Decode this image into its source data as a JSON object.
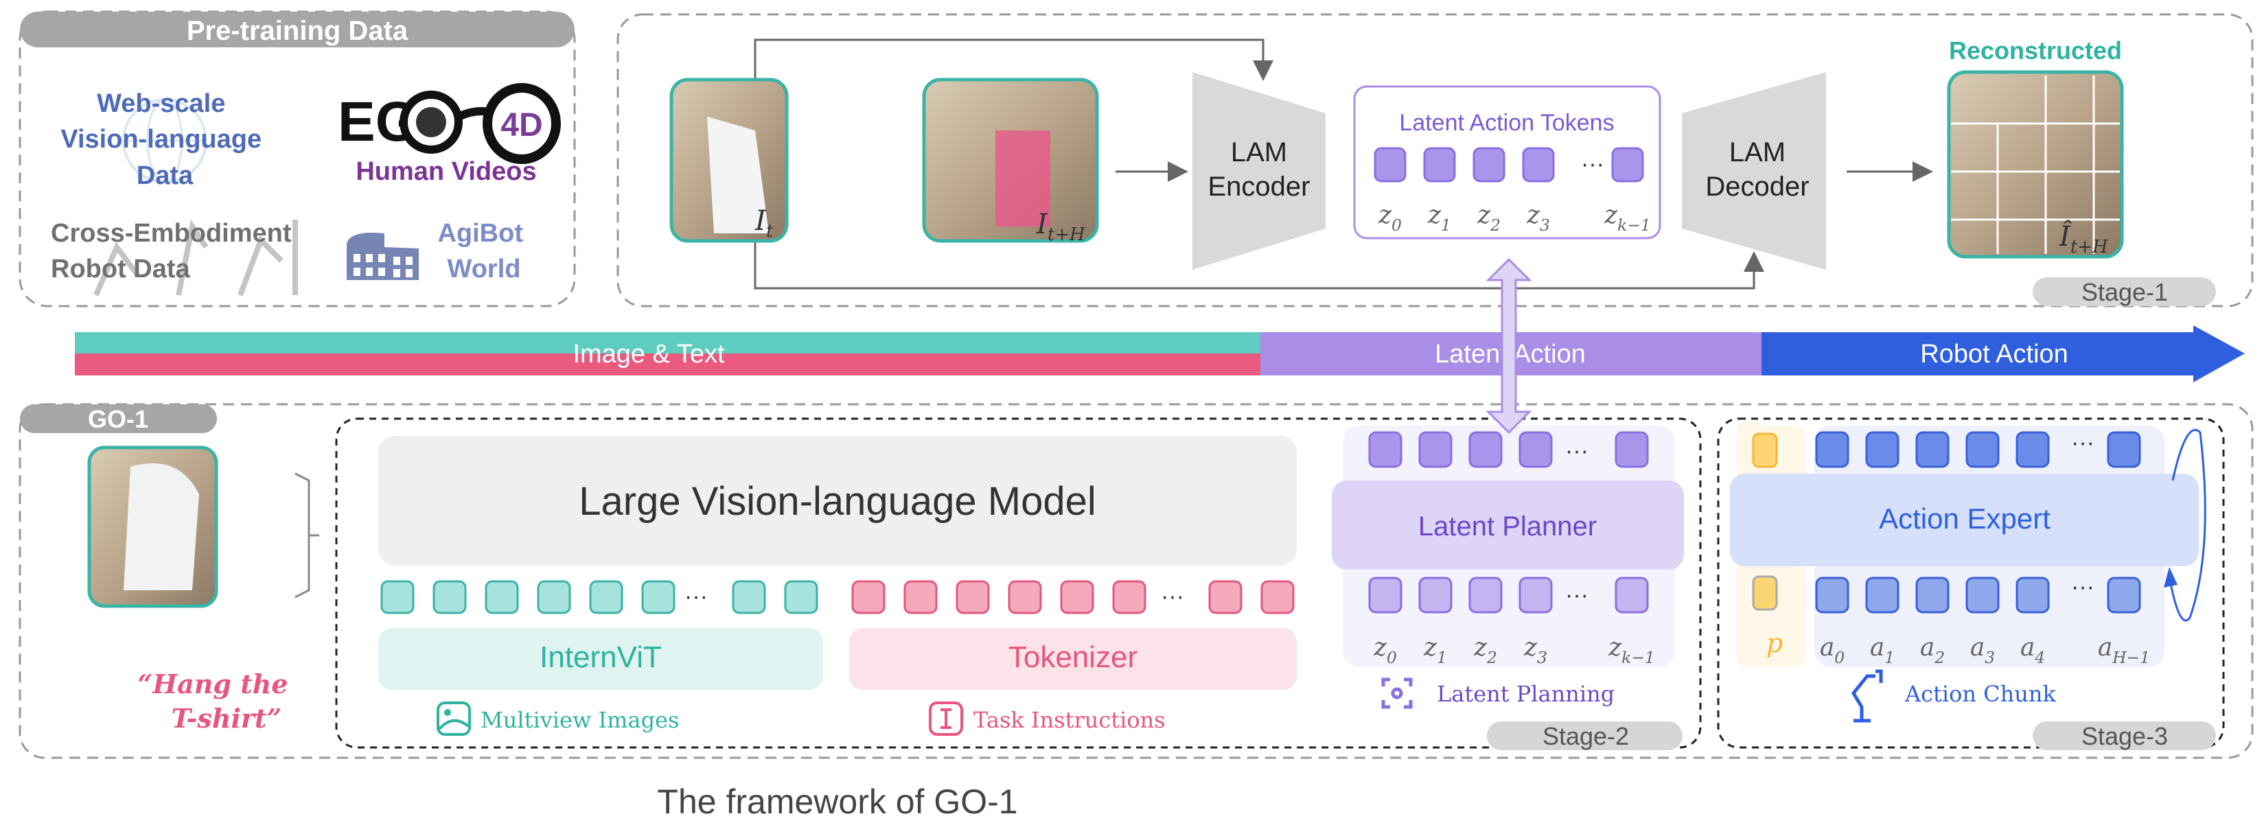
{
  "pretraining": {
    "title": "Pre-training Data",
    "web": [
      "Web-scale",
      "Vision-language",
      "Data"
    ],
    "ego_logo": {
      "ego": "EG",
      "four_d": "4D"
    },
    "human_videos": "Human Videos",
    "cross": [
      "Cross-Embodiment",
      "Robot Data"
    ],
    "agibot": [
      "AgiBot",
      "World"
    ]
  },
  "stage1": {
    "image_t": {
      "base": "I",
      "sub": "t"
    },
    "image_tH": {
      "base": "I",
      "sub": "t+H"
    },
    "encoder": [
      "LAM",
      "Encoder"
    ],
    "tokens_title": "Latent Action Tokens",
    "token_labels": [
      {
        "b": "z",
        "s": "0"
      },
      {
        "b": "z",
        "s": "1"
      },
      {
        "b": "z",
        "s": "2"
      },
      {
        "b": "z",
        "s": "3"
      },
      {
        "b": "z",
        "s": "k−1"
      }
    ],
    "ellipsis": "···",
    "decoder": [
      "LAM",
      "Decoder"
    ],
    "reconstructed": "Reconstructed",
    "image_hat": {
      "base": "Î",
      "sub": "t+H"
    },
    "stage_label": "Stage-1"
  },
  "progress": {
    "segments": [
      "Image & Text",
      "Latent Action",
      "Robot Action"
    ],
    "colors": {
      "teal": "#5ecdc0",
      "pink": "#ea5a7e",
      "purple": "#a98de6",
      "blue": "#2f5fde"
    }
  },
  "go1": {
    "title": "GO-1",
    "instruction": [
      "“Hang the",
      "T-shirt”"
    ],
    "vlm": "Large Vision-language Model",
    "internvit": "InternViT",
    "tokenizer": "Tokenizer",
    "multiview": "Multiview Images",
    "task": "Task Instructions",
    "ellipsis": "···",
    "latent_planner": "Latent Planner",
    "latent_planning": "Latent Planning",
    "planner_labels": [
      {
        "b": "z",
        "s": "0"
      },
      {
        "b": "z",
        "s": "1"
      },
      {
        "b": "z",
        "s": "2"
      },
      {
        "b": "z",
        "s": "3"
      },
      {
        "b": "z",
        "s": "k−1"
      }
    ],
    "stage2": "Stage-2",
    "action_expert": "Action Expert",
    "proprio": "p",
    "action_labels": [
      {
        "b": "a",
        "s": "0"
      },
      {
        "b": "a",
        "s": "1"
      },
      {
        "b": "a",
        "s": "2"
      },
      {
        "b": "a",
        "s": "3"
      },
      {
        "b": "a",
        "s": "4"
      },
      {
        "b": "a",
        "s": "H−1"
      }
    ],
    "action_chunk": "Action Chunk",
    "stage3": "Stage-3"
  },
  "caption": "The framework of GO-1"
}
